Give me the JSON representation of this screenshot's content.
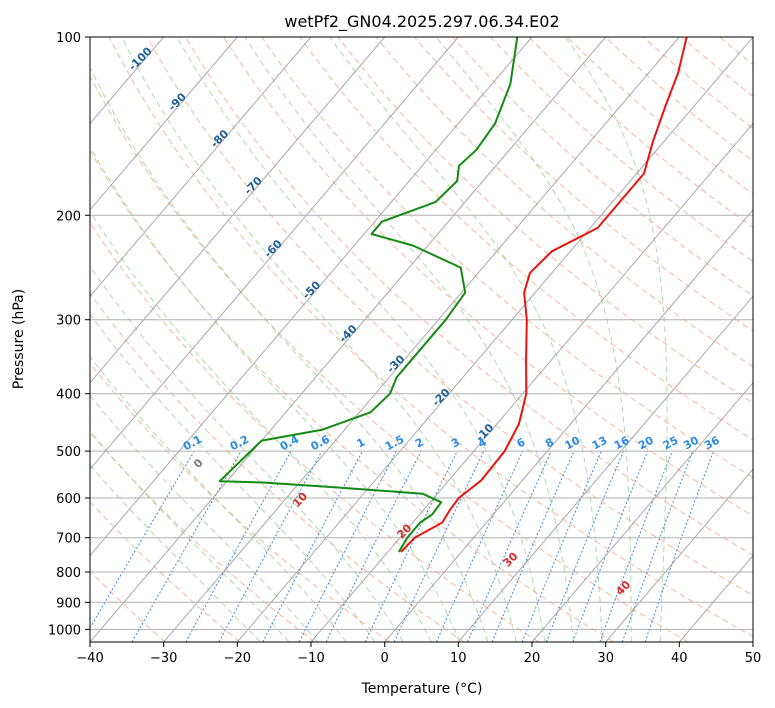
{
  "chart_data": {
    "type": "line",
    "title": "wetPf2_GN04.2025.297.06.34.E02",
    "xlabel": "Temperature (°C)",
    "ylabel": "Pressure (hPa)",
    "xlim": [
      -40,
      50
    ],
    "ylim": [
      1050,
      100
    ],
    "y_scale": "log",
    "skew": true,
    "x_ticks": [
      -40,
      -30,
      -20,
      -10,
      0,
      10,
      20,
      30,
      40,
      50
    ],
    "y_ticks": [
      100,
      200,
      300,
      400,
      500,
      600,
      700,
      800,
      900,
      1000
    ],
    "grid": true,
    "colors": {
      "temperature": "#e8150f",
      "dewpoint": "#138a13",
      "isotherm": "#9a9a9a",
      "dry_adiabat": "#f4a07c",
      "moist_adiabat": "#8fca8f",
      "mixing_ratio": "#2a7fd6",
      "isotherm_label": "#1f5f9a",
      "adiabat_label": "#d62a2a",
      "mixing_label": "#2a8ae6"
    },
    "series": [
      {
        "points": [
          {
            "p": 740,
            "t": -8.2
          },
          {
            "p": 700,
            "t": -8.0
          },
          {
            "p": 660,
            "t": -6.0
          },
          {
            "p": 630,
            "t": -6.4
          },
          {
            "p": 600,
            "t": -6.6
          },
          {
            "p": 560,
            "t": -5.6
          },
          {
            "p": 500,
            "t": -5.8
          },
          {
            "p": 450,
            "t": -7.0
          },
          {
            "p": 400,
            "t": -9.5
          },
          {
            "p": 350,
            "t": -13.5
          },
          {
            "p": 300,
            "t": -18.0
          },
          {
            "p": 270,
            "t": -21.5
          },
          {
            "p": 250,
            "t": -23.0
          },
          {
            "p": 230,
            "t": -22.5
          },
          {
            "p": 210,
            "t": -19.0
          },
          {
            "p": 190,
            "t": -19.0
          },
          {
            "p": 170,
            "t": -19.0
          },
          {
            "p": 150,
            "t": -21.5
          },
          {
            "p": 130,
            "t": -24.0
          },
          {
            "p": 115,
            "t": -26.0
          },
          {
            "p": 100,
            "t": -29.0
          }
        ]
      },
      {
        "points": [
          {
            "p": 740,
            "t": -8.5
          },
          {
            "p": 700,
            "t": -9.0
          },
          {
            "p": 660,
            "t": -9.0
          },
          {
            "p": 640,
            "t": -8.3
          },
          {
            "p": 610,
            "t": -8.5
          },
          {
            "p": 590,
            "t": -12.0
          },
          {
            "p": 575,
            "t": -25.0
          },
          {
            "p": 565,
            "t": -35.0
          },
          {
            "p": 562,
            "t": -41.0
          },
          {
            "p": 480,
            "t": -40.0
          },
          {
            "p": 460,
            "t": -33.0
          },
          {
            "p": 430,
            "t": -28.5
          },
          {
            "p": 400,
            "t": -28.0
          },
          {
            "p": 375,
            "t": -29.0
          },
          {
            "p": 350,
            "t": -29.0
          },
          {
            "p": 300,
            "t": -29.0
          },
          {
            "p": 270,
            "t": -29.5
          },
          {
            "p": 245,
            "t": -33.0
          },
          {
            "p": 225,
            "t": -42.0
          },
          {
            "p": 215,
            "t": -49.0
          },
          {
            "p": 205,
            "t": -49.0
          },
          {
            "p": 190,
            "t": -44.0
          },
          {
            "p": 175,
            "t": -43.5
          },
          {
            "p": 165,
            "t": -45.0
          },
          {
            "p": 155,
            "t": -44.5
          },
          {
            "p": 140,
            "t": -45.0
          },
          {
            "p": 120,
            "t": -47.5
          },
          {
            "p": 100,
            "t": -52.0
          }
        ]
      }
    ],
    "isotherm_labels": [
      "-100",
      "-90",
      "-80",
      "-70",
      "-60",
      "-50",
      "-40",
      "-30",
      "-20",
      "-10"
    ],
    "mixing_ratio_labels": [
      "0.1",
      "0.2",
      "0.4",
      "0.6",
      "1",
      "1.5",
      "2",
      "3",
      "4",
      "6",
      "8",
      "10",
      "13",
      "16",
      "20",
      "25",
      "30",
      "36"
    ],
    "dry_adiabat_labels": [
      "0",
      "10",
      "20",
      "30",
      "40"
    ]
  }
}
